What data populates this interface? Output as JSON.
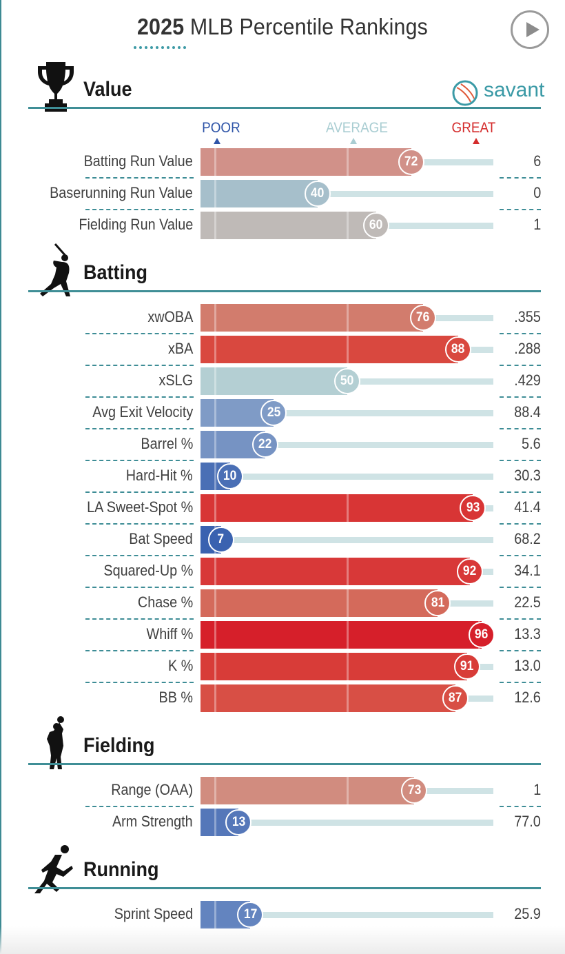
{
  "header": {
    "title_year": "2025",
    "title_rest": "MLB Percentile Rankings",
    "play_button": "play-icon"
  },
  "brand": {
    "logo": "savant-baseball-logo",
    "name": "savant"
  },
  "scale": {
    "poor": "POOR",
    "average": "AVERAGE",
    "great": "GREAT"
  },
  "colors": {
    "section_rule": "#3f8e96",
    "poor": "#2f55a8",
    "average": "#a9cdd2",
    "great": "#d42c2c",
    "track": "#cfe3e5"
  },
  "sections": [
    {
      "title": "Value",
      "icon": "trophy-icon",
      "metrics": [
        {
          "label": "Batting Run Value",
          "percentile": 72,
          "value": "6",
          "color": "#d19189"
        },
        {
          "label": "Baserunning Run Value",
          "percentile": 40,
          "value": "0",
          "color": "#a6bfcb"
        },
        {
          "label": "Fielding Run Value",
          "percentile": 60,
          "value": "1",
          "color": "#bfbab7"
        }
      ]
    },
    {
      "title": "Batting",
      "icon": "batter-icon",
      "metrics": [
        {
          "label": "xwOBA",
          "percentile": 76,
          "value": ".355",
          "color": "#d27c6d"
        },
        {
          "label": "xBA",
          "percentile": 88,
          "value": ".288",
          "color": "#d9483f"
        },
        {
          "label": "xSLG",
          "percentile": 50,
          "value": ".429",
          "color": "#b4cfd3"
        },
        {
          "label": "Avg Exit Velocity",
          "percentile": 25,
          "value": "88.4",
          "color": "#7f9bc6"
        },
        {
          "label": "Barrel %",
          "percentile": 22,
          "value": "5.6",
          "color": "#7693c3"
        },
        {
          "label": "Hard-Hit %",
          "percentile": 10,
          "value": "30.3",
          "color": "#4a6fb5"
        },
        {
          "label": "LA Sweet-Spot %",
          "percentile": 93,
          "value": "41.4",
          "color": "#d83535"
        },
        {
          "label": "Bat Speed",
          "percentile": 7,
          "value": "68.2",
          "color": "#3a62b0"
        },
        {
          "label": "Squared-Up %",
          "percentile": 92,
          "value": "34.1",
          "color": "#d83838"
        },
        {
          "label": "Chase %",
          "percentile": 81,
          "value": "22.5",
          "color": "#d46a5b"
        },
        {
          "label": "Whiff %",
          "percentile": 96,
          "value": "13.3",
          "color": "#d61f2a"
        },
        {
          "label": "K %",
          "percentile": 91,
          "value": "13.0",
          "color": "#d83c38"
        },
        {
          "label": "BB %",
          "percentile": 87,
          "value": "12.6",
          "color": "#d84f45"
        }
      ]
    },
    {
      "title": "Fielding",
      "icon": "fielder-icon",
      "metrics": [
        {
          "label": "Range (OAA)",
          "percentile": 73,
          "value": "1",
          "color": "#d18c7f"
        },
        {
          "label": "Arm Strength",
          "percentile": 13,
          "value": "77.0",
          "color": "#5577b9"
        }
      ]
    },
    {
      "title": "Running",
      "icon": "runner-icon",
      "metrics": [
        {
          "label": "Sprint Speed",
          "percentile": 17,
          "value": "25.9",
          "color": "#6384bf"
        }
      ]
    }
  ]
}
